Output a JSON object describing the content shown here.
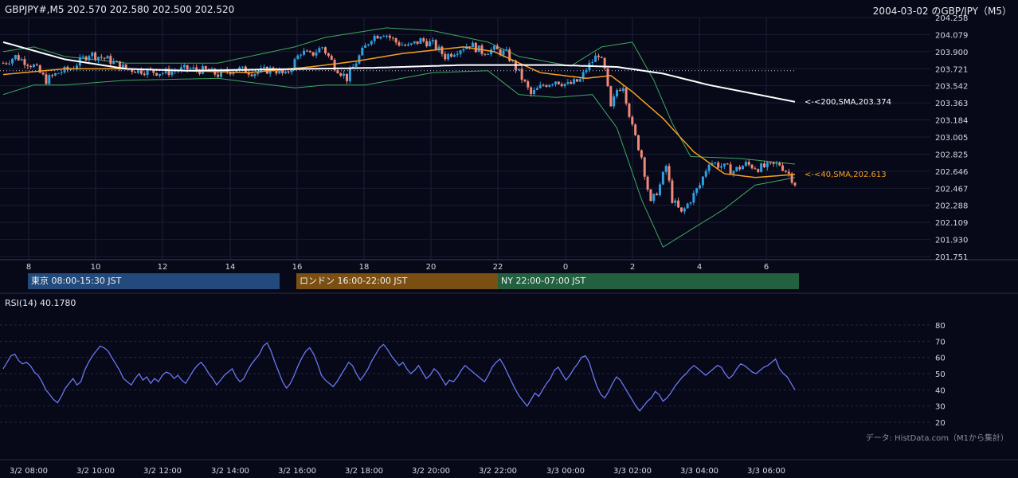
{
  "header": {
    "symbol_ohlc": "GBPJPY#,M5 202.570 202.580 202.500 202.520",
    "chart_title": "2004-03-02 のGBP/JPY（M5）"
  },
  "sessions": [
    {
      "label": "東京 08:00-15:30 JST",
      "color": "#234a7c"
    },
    {
      "label": "ロンドン 16:00-22:00 JST",
      "color": "#7b4f12"
    },
    {
      "label": "NY 22:00-07:00 JST",
      "color": "#22603f"
    }
  ],
  "rsi": {
    "label": "RSI(14) 40.1780"
  },
  "source_note": "データ: HistData.com（M1から集計）",
  "colors": {
    "background": "#070818",
    "candle_up": "#2f9fe0",
    "candle_down": "#f08a78",
    "sma40": "#f5a020",
    "sma200": "#ffffff",
    "bollinger": "#3fa860",
    "rsi_line": "#6a78f0"
  },
  "chart_data": [
    {
      "type": "candlestick",
      "x_hour_ticks": [
        "8",
        "10",
        "12",
        "14",
        "16",
        "18",
        "20",
        "22",
        "0",
        "2",
        "4",
        "6"
      ],
      "ylim": [
        201.751,
        204.258
      ],
      "y_ticks": [
        204.258,
        204.079,
        203.9,
        203.721,
        203.542,
        203.363,
        203.184,
        203.005,
        202.825,
        202.646,
        202.467,
        202.288,
        202.109,
        201.93,
        201.751
      ],
      "y_tick_labels": [
        "204.258",
        "204.079",
        "203.900",
        "203.721",
        "203.542",
        "203.363",
        "203.184",
        "203.005",
        "202.825",
        "202.646",
        "202.467",
        "202.288",
        "202.109",
        "201.930",
        "201.751"
      ],
      "reference_level": 203.7,
      "price_path": [
        [
          0,
          203.78
        ],
        [
          4,
          203.85
        ],
        [
          10,
          203.75
        ],
        [
          14,
          203.6
        ],
        [
          18,
          203.68
        ],
        [
          22,
          203.72
        ],
        [
          28,
          203.88
        ],
        [
          34,
          203.82
        ],
        [
          40,
          203.72
        ],
        [
          52,
          203.68
        ],
        [
          60,
          203.72
        ],
        [
          66,
          203.7
        ],
        [
          70,
          203.66
        ],
        [
          76,
          203.72
        ],
        [
          82,
          203.68
        ],
        [
          88,
          203.72
        ],
        [
          92,
          203.65
        ],
        [
          97,
          203.9
        ],
        [
          100,
          203.86
        ],
        [
          104,
          203.95
        ],
        [
          108,
          203.75
        ],
        [
          112,
          203.62
        ],
        [
          116,
          203.85
        ],
        [
          120,
          204.05
        ],
        [
          124,
          204.1
        ],
        [
          128,
          204.0
        ],
        [
          132,
          203.95
        ],
        [
          136,
          204.02
        ],
        [
          140,
          203.98
        ],
        [
          144,
          203.85
        ],
        [
          148,
          203.92
        ],
        [
          152,
          203.98
        ],
        [
          156,
          203.9
        ],
        [
          160,
          203.92
        ],
        [
          164,
          203.88
        ],
        [
          168,
          203.68
        ],
        [
          172,
          203.45
        ],
        [
          176,
          203.55
        ],
        [
          180,
          203.6
        ],
        [
          184,
          203.55
        ],
        [
          188,
          203.6
        ],
        [
          190,
          203.72
        ],
        [
          194,
          203.88
        ],
        [
          196,
          203.7
        ],
        [
          198,
          203.3
        ],
        [
          200,
          203.5
        ],
        [
          202,
          203.55
        ],
        [
          205,
          203.1
        ],
        [
          208,
          202.8
        ],
        [
          211,
          202.3
        ],
        [
          214,
          202.5
        ],
        [
          216,
          202.7
        ],
        [
          218,
          202.35
        ],
        [
          221,
          202.2
        ],
        [
          224,
          202.35
        ],
        [
          227,
          202.5
        ],
        [
          230,
          202.75
        ],
        [
          234,
          202.7
        ],
        [
          238,
          202.65
        ],
        [
          242,
          202.72
        ],
        [
          246,
          202.68
        ],
        [
          250,
          202.7
        ],
        [
          253,
          202.72
        ],
        [
          256,
          202.62
        ],
        [
          258,
          202.52
        ]
      ],
      "sma_200": {
        "label": "<-<200,SMA,203.374",
        "value": 203.374,
        "path": [
          [
            0,
            204.0
          ],
          [
            20,
            203.82
          ],
          [
            40,
            203.72
          ],
          [
            60,
            203.7
          ],
          [
            80,
            203.71
          ],
          [
            100,
            203.72
          ],
          [
            120,
            203.73
          ],
          [
            150,
            203.76
          ],
          [
            180,
            203.76
          ],
          [
            200,
            203.74
          ],
          [
            215,
            203.67
          ],
          [
            230,
            203.55
          ],
          [
            258,
            203.374
          ]
        ]
      },
      "sma_40": {
        "label": "<-<40,SMA,202.613",
        "value": 202.613,
        "path": [
          [
            0,
            203.66
          ],
          [
            20,
            203.72
          ],
          [
            40,
            203.72
          ],
          [
            60,
            203.7
          ],
          [
            80,
            203.68
          ],
          [
            100,
            203.74
          ],
          [
            115,
            203.8
          ],
          [
            130,
            203.88
          ],
          [
            150,
            203.95
          ],
          [
            160,
            203.9
          ],
          [
            175,
            203.68
          ],
          [
            190,
            203.62
          ],
          [
            198,
            203.65
          ],
          [
            205,
            203.48
          ],
          [
            215,
            203.2
          ],
          [
            225,
            202.85
          ],
          [
            235,
            202.62
          ],
          [
            245,
            202.58
          ],
          [
            258,
            202.613
          ]
        ]
      },
      "bollinger_upper": [
        [
          0,
          203.9
        ],
        [
          10,
          203.95
        ],
        [
          20,
          203.85
        ],
        [
          40,
          203.78
        ],
        [
          70,
          203.78
        ],
        [
          95,
          203.95
        ],
        [
          105,
          204.05
        ],
        [
          125,
          204.15
        ],
        [
          140,
          204.12
        ],
        [
          158,
          204.0
        ],
        [
          168,
          203.85
        ],
        [
          185,
          203.75
        ],
        [
          195,
          203.95
        ],
        [
          205,
          204.0
        ],
        [
          212,
          203.6
        ],
        [
          218,
          203.15
        ],
        [
          224,
          202.8
        ],
        [
          240,
          202.78
        ],
        [
          258,
          202.72
        ]
      ],
      "bollinger_lower": [
        [
          0,
          203.45
        ],
        [
          10,
          203.55
        ],
        [
          20,
          203.55
        ],
        [
          40,
          203.6
        ],
        [
          70,
          203.62
        ],
        [
          95,
          203.52
        ],
        [
          105,
          203.55
        ],
        [
          118,
          203.55
        ],
        [
          140,
          203.68
        ],
        [
          158,
          203.7
        ],
        [
          168,
          203.45
        ],
        [
          180,
          203.42
        ],
        [
          192,
          203.45
        ],
        [
          200,
          203.1
        ],
        [
          208,
          202.35
        ],
        [
          215,
          201.85
        ],
        [
          225,
          202.05
        ],
        [
          235,
          202.25
        ],
        [
          245,
          202.5
        ],
        [
          258,
          202.58
        ]
      ]
    },
    {
      "type": "line",
      "series_name": "RSI(14)",
      "ylim": [
        20,
        80
      ],
      "y_ticks": [
        20,
        30,
        40,
        50,
        60,
        70,
        80
      ],
      "last_value": 40.178,
      "x_labels": [
        "3/2 08:00",
        "3/2 10:00",
        "3/2 12:00",
        "3/2 14:00",
        "3/2 16:00",
        "3/2 18:00",
        "3/2 20:00",
        "3/2 22:00",
        "3/3 00:00",
        "3/3 02:00",
        "3/3 04:00",
        "3/3 06:00"
      ],
      "values": [
        53,
        57,
        61,
        62,
        58,
        56,
        57,
        55,
        51,
        49,
        45,
        40,
        37,
        34,
        32,
        36,
        41,
        44,
        47,
        43,
        45,
        52,
        57,
        61,
        64,
        67,
        66,
        64,
        60,
        56,
        52,
        47,
        45,
        43,
        47,
        50,
        46,
        48,
        44,
        47,
        45,
        49,
        51,
        50,
        47,
        49,
        46,
        44,
        48,
        52,
        55,
        57,
        54,
        50,
        47,
        43,
        46,
        49,
        51,
        53,
        48,
        45,
        47,
        52,
        56,
        59,
        62,
        67,
        69,
        64,
        57,
        51,
        45,
        41,
        44,
        49,
        55,
        60,
        64,
        66,
        62,
        56,
        49,
        46,
        44,
        42,
        45,
        49,
        53,
        57,
        55,
        50,
        46,
        49,
        53,
        58,
        62,
        66,
        68,
        65,
        61,
        58,
        55,
        57,
        53,
        50,
        52,
        55,
        51,
        47,
        49,
        53,
        51,
        47,
        43,
        46,
        45,
        48,
        52,
        55,
        53,
        51,
        49,
        47,
        45,
        49,
        54,
        57,
        59,
        55,
        50,
        45,
        40,
        36,
        33,
        30,
        34,
        38,
        36,
        40,
        44,
        47,
        52,
        54,
        50,
        46,
        49,
        53,
        56,
        60,
        61,
        57,
        49,
        42,
        37,
        35,
        39,
        44,
        48,
        46,
        42,
        38,
        34,
        30,
        27,
        30,
        33,
        35,
        39,
        37,
        33,
        35,
        38,
        42,
        45,
        48,
        50,
        53,
        55,
        53,
        51,
        49,
        51,
        53,
        55,
        54,
        50,
        47,
        49,
        53,
        56,
        55,
        53,
        51,
        50,
        52,
        54,
        55,
        57,
        59,
        53,
        50,
        48,
        44,
        40
      ]
    }
  ]
}
